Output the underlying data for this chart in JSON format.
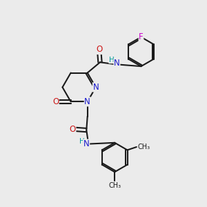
{
  "background_color": "#ebebeb",
  "bond_color": "#1a1a1a",
  "bond_width": 1.5,
  "atom_colors": {
    "C": "#1a1a1a",
    "N": "#1a1acc",
    "O": "#cc1a1a",
    "F": "#cc00cc",
    "H": "#009999"
  },
  "font_size": 8.5,
  "fig_size": [
    3.0,
    3.0
  ],
  "dpi": 100
}
